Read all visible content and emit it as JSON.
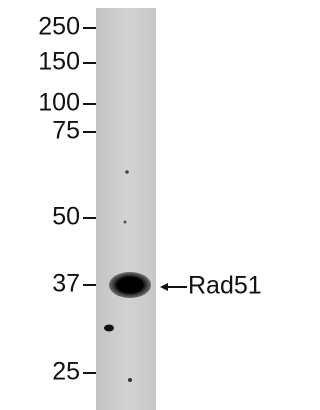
{
  "markers": [
    "250",
    "150",
    "100",
    "75",
    "50",
    "37",
    "25"
  ],
  "band_label": "Rad51"
}
